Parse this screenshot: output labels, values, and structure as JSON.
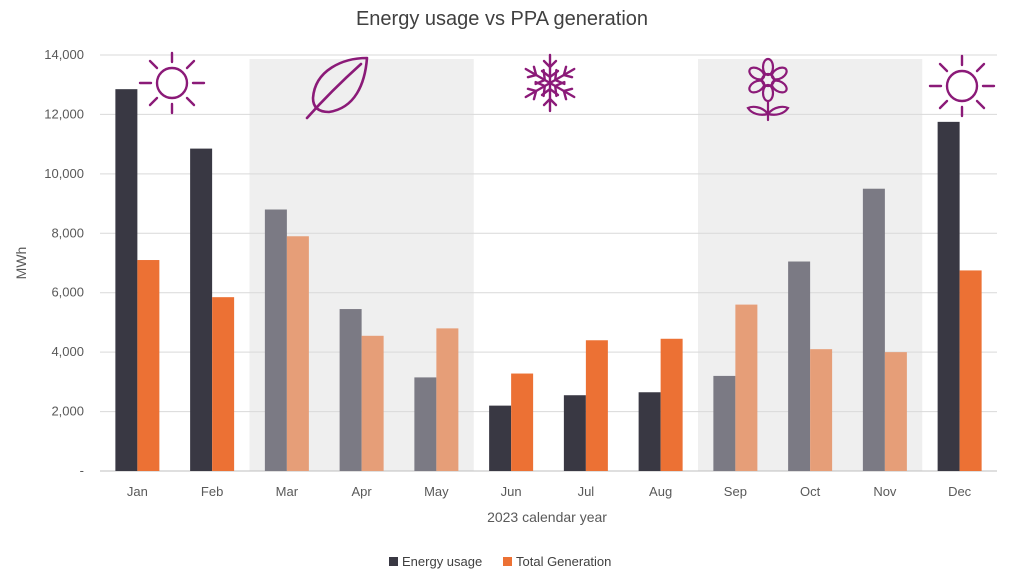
{
  "chart_data": {
    "type": "bar",
    "title": "Energy usage vs PPA generation",
    "xlabel": "2023 calendar year",
    "ylabel": "MWh",
    "ylim": [
      0,
      14000
    ],
    "yticks": [
      0,
      2000,
      4000,
      6000,
      8000,
      10000,
      12000,
      14000
    ],
    "ytick_labels": [
      "-",
      "2,000",
      "4,000",
      "6,000",
      "8,000",
      "10,000",
      "12,000",
      "14,000"
    ],
    "categories": [
      "Jan",
      "Feb",
      "Mar",
      "Apr",
      "May",
      "Jun",
      "Jul",
      "Aug",
      "Sep",
      "Oct",
      "Nov",
      "Dec"
    ],
    "series": [
      {
        "name": "Energy usage",
        "values": [
          12850,
          10850,
          8800,
          5450,
          3150,
          2200,
          2550,
          2650,
          3200,
          7050,
          9500,
          11750
        ],
        "colors": [
          "#393843",
          "#393843",
          "#7b7a84",
          "#7b7a84",
          "#7b7a84",
          "#393843",
          "#393843",
          "#393843",
          "#7b7a84",
          "#7b7a84",
          "#7b7a84",
          "#393843"
        ]
      },
      {
        "name": "Total Generation",
        "values": [
          7100,
          5850,
          7900,
          4550,
          4800,
          3280,
          4400,
          4450,
          5600,
          4100,
          4000,
          6750
        ],
        "colors": [
          "#ec7134",
          "#ec7134",
          "#e69e78",
          "#e69e78",
          "#e69e78",
          "#ec7134",
          "#ec7134",
          "#ec7134",
          "#e69e78",
          "#e69e78",
          "#e69e78",
          "#ec7134"
        ]
      }
    ],
    "shaded_ranges": [
      {
        "from": "Mar",
        "to": "May",
        "color": "#efefef"
      },
      {
        "from": "Sep",
        "to": "Nov",
        "color": "#efefef"
      }
    ],
    "season_icons": [
      {
        "name": "sun-icon",
        "category": "Jan"
      },
      {
        "name": "leaf-icon",
        "category": "Mar-Apr"
      },
      {
        "name": "snowflake-icon",
        "category": "Jun-Jul"
      },
      {
        "name": "flower-icon",
        "category": "Sep-Oct"
      },
      {
        "name": "sun-icon",
        "category": "Dec"
      }
    ],
    "icon_color": "#8b1a78",
    "grid": true,
    "legend_position": "bottom-center"
  }
}
